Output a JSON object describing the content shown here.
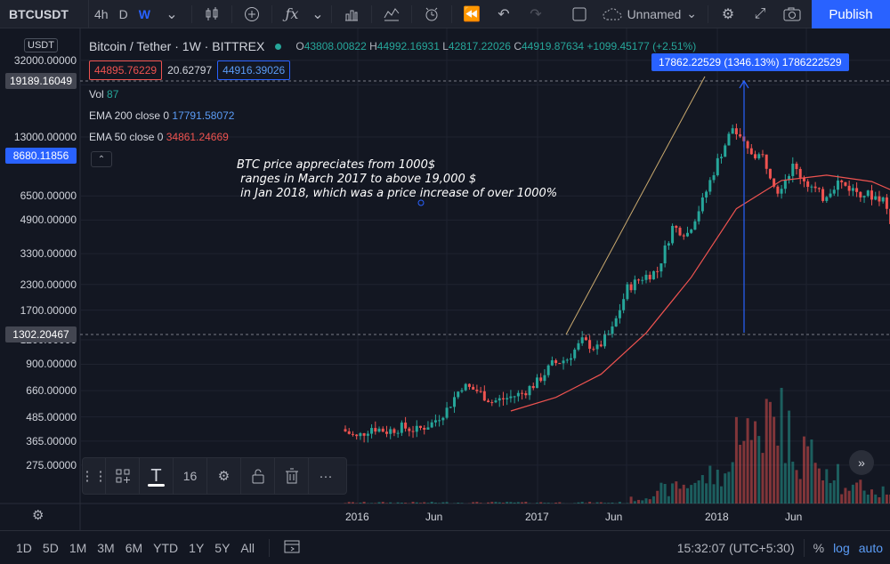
{
  "toolbar": {
    "symbol": "BTCUSDT",
    "intervals": [
      "4h",
      "D",
      "W"
    ],
    "active_interval": "W",
    "layout_name": "Unnamed",
    "publish_label": "Publish",
    "icons": [
      "candles-icon",
      "add-indicator-icon",
      "fx-icon",
      "chevron-down-icon",
      "bar-chart-icon",
      "indicators-icon",
      "alert-icon",
      "replay-icon",
      "undo-icon",
      "redo-icon",
      "square-icon",
      "cloud-icon",
      "gear-icon",
      "fullscreen-icon",
      "camera-icon"
    ]
  },
  "legend": {
    "title": "Bitcoin / Tether · 1W · BITTREX",
    "open_label": "O",
    "open": "43808.00822",
    "high_label": "H",
    "high": "44992.16931",
    "low_label": "L",
    "low": "42817.22026",
    "close_label": "C",
    "close": "44919.87634",
    "change": "+1099.45177 (+2.51%)",
    "bid": "44895.76229",
    "spread": "20.62797",
    "ask": "44916.39026"
  },
  "indicators": {
    "vol_label": "Vol",
    "vol_value": "87",
    "ema200_label": "EMA 200 close 0",
    "ema200_value": "17791.58072",
    "ema50_label": "EMA 50 close 0",
    "ema50_value": "34861.24669"
  },
  "annotation": {
    "line1": "BTC price appreciates from 1000$",
    "line2": " ranges in March 2017 to above 19,000 $",
    "line3": " in Jan 2018, which was a price increase of over 1000%"
  },
  "measure_label": "17862.22529 (1346.13%) 1786222529",
  "price_axis": {
    "currency": "USDT",
    "ticks": [
      "32000.00000",
      "24000.00000",
      "13000.00000",
      "6500.00000",
      "4900.00000",
      "3300.00000",
      "2300.00000",
      "1700.00000",
      "1200.00000",
      "900.00000",
      "660.00000",
      "485.00000",
      "365.00000",
      "275.00000"
    ],
    "tag_high": "19189.16049",
    "tag_last": "8680.11856",
    "tag_low": "1302.20467"
  },
  "time_axis": {
    "labels": [
      "2016",
      "Jun",
      "2017",
      "Jun",
      "2018",
      "Jun"
    ]
  },
  "floating_toolbar": {
    "font_size": "16"
  },
  "bottombar": {
    "ranges": [
      "1D",
      "5D",
      "1M",
      "3M",
      "6M",
      "YTD",
      "1Y",
      "5Y",
      "All"
    ],
    "time": "15:32:07 (UTC+5:30)",
    "percent_label": "%",
    "log_label": "log",
    "auto_label": "auto"
  },
  "colors": {
    "up": "#26a69a",
    "down": "#ef5350",
    "ema": "#ef5350",
    "accent": "#2962ff",
    "trendline": "#c9a96e"
  },
  "chart_data": {
    "type": "candlestick",
    "title": "Bitcoin / Tether · 1W · BITTREX",
    "scale": "log",
    "ylim": [
      230,
      34000
    ],
    "x_start": "2015-10",
    "x_end": "2018-11",
    "weekly_close_series": [
      [
        "2015-10",
        420
      ],
      [
        "2015-11",
        380
      ],
      [
        "2015-12",
        430
      ],
      [
        "2016-01",
        410
      ],
      [
        "2016-02",
        430
      ],
      [
        "2016-03",
        415
      ],
      [
        "2016-04",
        450
      ],
      [
        "2016-05",
        530
      ],
      [
        "2016-06",
        700
      ],
      [
        "2016-07",
        660
      ],
      [
        "2016-08",
        580
      ],
      [
        "2016-09",
        605
      ],
      [
        "2016-10",
        640
      ],
      [
        "2016-11",
        730
      ],
      [
        "2016-12",
        900
      ],
      [
        "2017-01",
        960
      ],
      [
        "2017-02",
        1180
      ],
      [
        "2017-03",
        1080
      ],
      [
        "2017-04",
        1350
      ],
      [
        "2017-05",
        2200
      ],
      [
        "2017-06",
        2500
      ],
      [
        "2017-07",
        2700
      ],
      [
        "2017-08",
        4500
      ],
      [
        "2017-09",
        4200
      ],
      [
        "2017-10",
        6100
      ],
      [
        "2017-11",
        9800
      ],
      [
        "2017-12",
        14500
      ],
      [
        "2018-01",
        11000
      ],
      [
        "2018-02",
        10300
      ],
      [
        "2018-03",
        7000
      ],
      [
        "2018-04",
        9200
      ],
      [
        "2018-05",
        7500
      ],
      [
        "2018-06",
        6400
      ],
      [
        "2018-07",
        7700
      ],
      [
        "2018-08",
        7000
      ],
      [
        "2018-09",
        6600
      ],
      [
        "2018-10",
        6300
      ],
      [
        "2018-11",
        3800
      ]
    ],
    "ema50_series": [
      [
        "2016-09",
        520
      ],
      [
        "2016-12",
        610
      ],
      [
        "2017-03",
        800
      ],
      [
        "2017-06",
        1300
      ],
      [
        "2017-09",
        2500
      ],
      [
        "2017-12",
        5600
      ],
      [
        "2018-03",
        7800
      ],
      [
        "2018-06",
        8300
      ],
      [
        "2018-09",
        7700
      ],
      [
        "2018-11",
        6600
      ]
    ]
  }
}
